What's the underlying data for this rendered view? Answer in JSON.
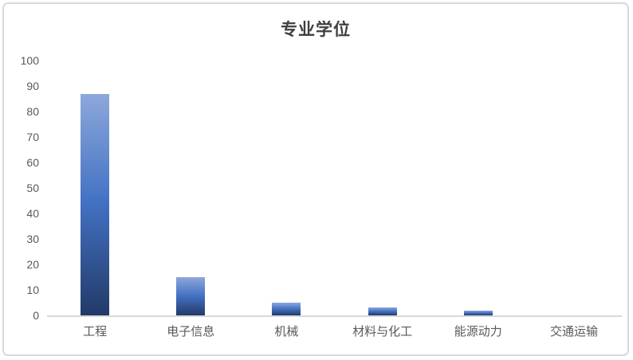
{
  "chart_data": {
    "type": "bar",
    "title": "专业学位",
    "categories": [
      "工程",
      "电子信息",
      "机械",
      "材料与化工",
      "能源动力",
      "交通运输"
    ],
    "values": [
      87,
      15,
      5,
      3,
      2,
      0
    ],
    "xlabel": "",
    "ylabel": "",
    "ylim": [
      0,
      100
    ],
    "yticks": [
      0,
      10,
      20,
      30,
      40,
      50,
      60,
      70,
      80,
      90,
      100
    ],
    "grid": false,
    "legend": "none",
    "colors": {
      "bar_gradient_top": "#8da8db",
      "bar_gradient_mid": "#4472c4",
      "bar_gradient_bottom": "#223a68",
      "axis_line": "#d9d9d9",
      "tick_text": "#595959",
      "title_text": "#3f3f3f",
      "frame_border": "#d7d9de"
    }
  }
}
